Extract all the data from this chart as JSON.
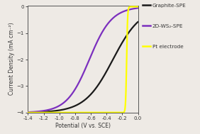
{
  "xlim": [
    -1.4,
    0.0
  ],
  "ylim": [
    -4.0,
    0.05
  ],
  "xticks": [
    -1.4,
    -1.2,
    -1.0,
    -0.8,
    -0.6,
    -0.4,
    -0.2,
    0.0
  ],
  "yticks": [
    -4,
    -3,
    -2,
    -1,
    0
  ],
  "xlabel": "Potential (V vs. SCE)",
  "ylabel": "Current Density (mA cm⁻²)",
  "bg_color": "#eeeae5",
  "plot_bg": "#eeeae5",
  "line_colors": {
    "graphite": "#1a1a1a",
    "ws2": "#7b2fbe",
    "pt": "#ffff00"
  },
  "legend_labels": [
    "Graphite-SPE",
    "2D-WS₂-SPE",
    "Pt electrode"
  ],
  "line_width": 1.6,
  "graphite": {
    "onset": -0.32,
    "steepness": 2.8
  },
  "ws2": {
    "onset": -0.62,
    "steepness": 3.5
  },
  "pt": {
    "onset": -0.145,
    "steepness": 80
  }
}
